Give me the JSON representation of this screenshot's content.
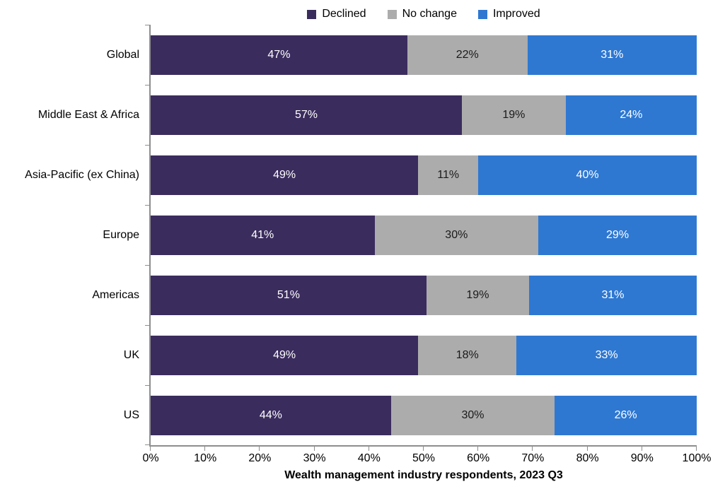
{
  "chart_data": {
    "type": "bar",
    "orientation": "horizontal",
    "stacked": true,
    "title": "",
    "xlabel": "Wealth management industry respondents, 2023 Q3",
    "ylabel": "",
    "xlim": [
      0,
      100
    ],
    "x_ticks": [
      "0%",
      "10%",
      "20%",
      "30%",
      "40%",
      "50%",
      "60%",
      "70%",
      "80%",
      "90%",
      "100%"
    ],
    "grid": false,
    "legend_position": "top",
    "value_suffix": "%",
    "axis_color": "#8e8e8e",
    "categories": [
      "Global",
      "Middle East & Africa",
      "Asia-Pacific (ex China)",
      "Europe",
      "Americas",
      "UK",
      "US"
    ],
    "series": [
      {
        "name": "Declined",
        "color": "#3b2c5e",
        "label_color": "#ffffff",
        "values": [
          47,
          57,
          49,
          41,
          51,
          49,
          44
        ]
      },
      {
        "name": "No change",
        "color": "#acacac",
        "label_color": "#1a1a1a",
        "values": [
          22,
          19,
          11,
          30,
          19,
          18,
          30
        ]
      },
      {
        "name": "Improved",
        "color": "#2e78d2",
        "label_color": "#ffffff",
        "values": [
          31,
          24,
          40,
          29,
          31,
          33,
          26
        ]
      }
    ]
  }
}
